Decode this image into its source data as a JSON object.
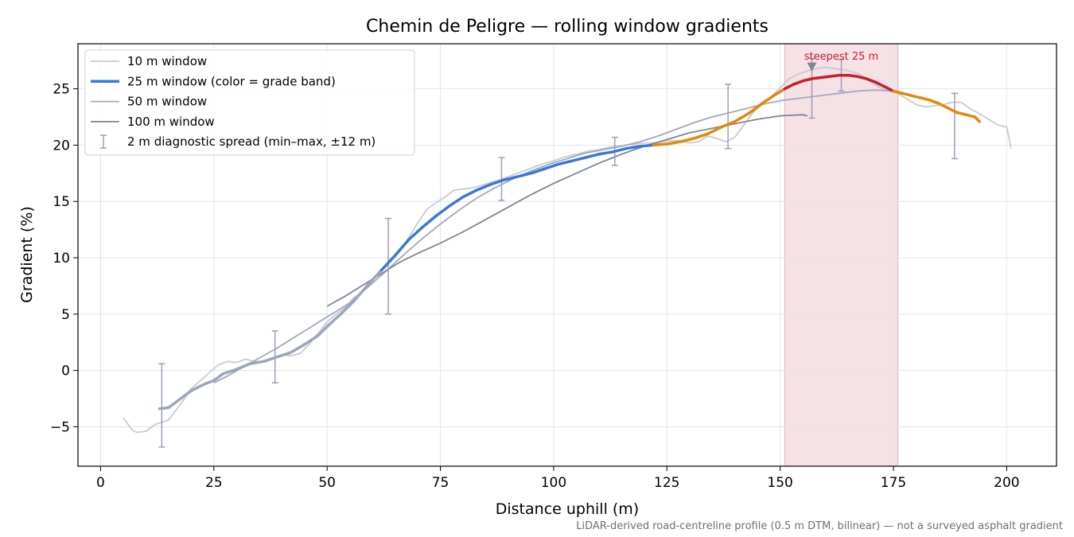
{
  "chart_data": {
    "type": "line",
    "title": "Chemin de Peligre — rolling window gradients",
    "xlabel": "Distance uphill (m)",
    "ylabel": "Gradient (%)",
    "xlim": [
      -5,
      211
    ],
    "ylim": [
      -8.5,
      29
    ],
    "xticks": [
      "0",
      "25",
      "50",
      "75",
      "100",
      "125",
      "150",
      "175",
      "200"
    ],
    "yticks": [
      "−5",
      "0",
      "5",
      "10",
      "15",
      "20",
      "25"
    ],
    "grid": true,
    "legend_position": "top-left",
    "footnote": "LiDAR-derived road-centreline profile (0.5 m DTM, bilinear) — not a surveyed asphalt gradient",
    "highlight": {
      "label": "steepest 25 m",
      "x_start": 151,
      "x_end": 176,
      "peak_x": 157,
      "color": "#e8b4bb"
    },
    "grade_band_colors": {
      "low": "#9aa6b8",
      "mid": "#3a78d6",
      "high": "#e08a0b",
      "steep": "#c4202e"
    },
    "series": [
      {
        "name": "10 m window",
        "color": "#c7cbd6",
        "x": [
          5,
          7,
          8,
          10,
          12,
          15,
          18,
          20,
          22,
          24,
          26,
          28,
          30,
          32,
          34,
          36,
          38,
          40,
          42,
          44,
          46,
          48,
          50,
          52,
          54,
          56,
          58,
          60,
          62,
          64,
          66,
          68,
          70,
          72,
          74,
          76,
          78,
          80,
          82,
          84,
          86,
          88,
          90,
          92,
          94,
          96,
          98,
          100,
          102,
          104,
          106,
          108,
          110,
          112,
          114,
          116,
          118,
          120,
          122,
          124,
          126,
          128,
          130,
          132,
          134,
          136,
          138,
          140,
          142,
          144,
          146,
          148,
          150,
          152,
          154,
          156,
          158,
          160,
          162,
          164,
          166,
          168,
          170,
          172,
          174,
          176,
          178,
          180,
          182,
          184,
          186,
          188,
          190,
          192,
          194,
          196,
          198,
          200,
          201
        ],
        "y": [
          -4.2,
          -5.3,
          -5.5,
          -5.4,
          -4.8,
          -4.4,
          -2.8,
          -1.6,
          -0.9,
          -0.2,
          0.5,
          0.8,
          0.7,
          1.0,
          0.8,
          0.8,
          1.0,
          1.4,
          1.3,
          1.5,
          2.3,
          3.3,
          4.3,
          5.0,
          5.6,
          6.5,
          7.0,
          8.1,
          9.0,
          9.8,
          10.6,
          11.8,
          13.1,
          14.3,
          14.9,
          15.4,
          16.0,
          16.1,
          16.2,
          16.4,
          16.7,
          16.9,
          17.2,
          17.5,
          17.8,
          18.1,
          18.4,
          18.6,
          18.9,
          19.1,
          19.3,
          19.5,
          19.6,
          19.8,
          19.9,
          20.0,
          20.1,
          20.2,
          20.2,
          20.3,
          20.4,
          20.4,
          20.2,
          20.3,
          20.8,
          20.6,
          20.3,
          20.7,
          21.8,
          22.9,
          23.6,
          24.3,
          25.1,
          25.9,
          26.3,
          26.6,
          26.8,
          26.9,
          26.8,
          26.7,
          26.5,
          26.2,
          25.6,
          25.1,
          24.8,
          24.6,
          24.1,
          23.6,
          23.4,
          23.5,
          23.6,
          23.8,
          23.8,
          23.2,
          22.8,
          22.3,
          21.8,
          21.6,
          19.7
        ]
      },
      {
        "name": "25 m window (color = grade band)",
        "color": "#3a78d6",
        "x": [
          13,
          15,
          17,
          20,
          23,
          25,
          27,
          30,
          33,
          36,
          39,
          42,
          45,
          48,
          50,
          53,
          56,
          59,
          62,
          65,
          68,
          71,
          74,
          77,
          80,
          83,
          86,
          89,
          92,
          95,
          98,
          101,
          104,
          107,
          110,
          113,
          116,
          119,
          122,
          125,
          128,
          131,
          134,
          137,
          140,
          143,
          146,
          149,
          151,
          153,
          155,
          157,
          159,
          161,
          163,
          165,
          167,
          169,
          171,
          173,
          175,
          177,
          179,
          181,
          183,
          185,
          187,
          189,
          191,
          193,
          194
        ],
        "y": [
          -3.4,
          -3.3,
          -2.7,
          -1.8,
          -1.2,
          -0.9,
          -0.3,
          0.1,
          0.6,
          0.8,
          1.2,
          1.6,
          2.3,
          3.1,
          3.9,
          5.0,
          6.2,
          7.6,
          8.9,
          10.2,
          11.6,
          12.7,
          13.7,
          14.6,
          15.4,
          16.0,
          16.5,
          16.9,
          17.2,
          17.5,
          17.9,
          18.3,
          18.6,
          18.9,
          19.2,
          19.4,
          19.7,
          19.9,
          20.0,
          20.1,
          20.3,
          20.6,
          21.0,
          21.6,
          22.1,
          22.8,
          23.7,
          24.5,
          25.0,
          25.4,
          25.7,
          25.9,
          26.0,
          26.1,
          26.2,
          26.2,
          26.1,
          25.9,
          25.6,
          25.2,
          24.8,
          24.6,
          24.4,
          24.2,
          24.0,
          23.7,
          23.3,
          22.9,
          22.7,
          22.5,
          22.1
        ]
      },
      {
        "name": "50 m window",
        "color": "#a3a9bb",
        "x": [
          25,
          28,
          31,
          35,
          39,
          43,
          47,
          51,
          55,
          59,
          63,
          67,
          71,
          75,
          79,
          83,
          87,
          91,
          95,
          99,
          103,
          107,
          111,
          115,
          119,
          123,
          127,
          131,
          135,
          139,
          143,
          147,
          151,
          155,
          159,
          163,
          167,
          171,
          175
        ],
        "y": [
          -1.1,
          -0.5,
          0.2,
          1.1,
          2.0,
          3.0,
          4.0,
          5.0,
          6.0,
          7.4,
          8.8,
          10.3,
          11.7,
          13.0,
          14.2,
          15.3,
          16.2,
          17.0,
          17.7,
          18.3,
          18.8,
          19.3,
          19.6,
          19.9,
          20.3,
          20.8,
          21.4,
          22.0,
          22.5,
          22.9,
          23.3,
          23.7,
          24.0,
          24.2,
          24.4,
          24.6,
          24.8,
          24.9,
          24.8
        ]
      },
      {
        "name": "100 m window",
        "color": "#7e8594",
        "x": [
          50,
          54,
          58,
          62,
          66,
          70,
          75,
          80,
          85,
          90,
          95,
          100,
          105,
          110,
          115,
          120,
          125,
          130,
          135,
          140,
          145,
          150,
          155,
          156
        ],
        "y": [
          5.7,
          6.6,
          7.6,
          8.6,
          9.6,
          10.4,
          11.3,
          12.3,
          13.4,
          14.5,
          15.6,
          16.6,
          17.5,
          18.4,
          19.2,
          19.9,
          20.5,
          21.1,
          21.5,
          21.9,
          22.3,
          22.6,
          22.7,
          22.6
        ]
      }
    ],
    "error_bars": {
      "name": "2 m diagnostic spread (min–max, ±12 m)",
      "color": "#a09cc0",
      "points": [
        {
          "x": 13.5,
          "low": -6.8,
          "high": 0.6
        },
        {
          "x": 38.5,
          "low": -1.1,
          "high": 3.5
        },
        {
          "x": 63.5,
          "low": 5.0,
          "high": 13.5
        },
        {
          "x": 88.5,
          "low": 15.1,
          "high": 18.9
        },
        {
          "x": 113.5,
          "low": 18.2,
          "high": 20.7
        },
        {
          "x": 138.5,
          "low": 19.7,
          "high": 25.4
        },
        {
          "x": 157,
          "low": 22.4,
          "high": 27.7
        },
        {
          "x": 163.5,
          "low": 24.8,
          "high": 27.6
        },
        {
          "x": 188.5,
          "low": 18.8,
          "high": 24.6
        }
      ]
    }
  }
}
